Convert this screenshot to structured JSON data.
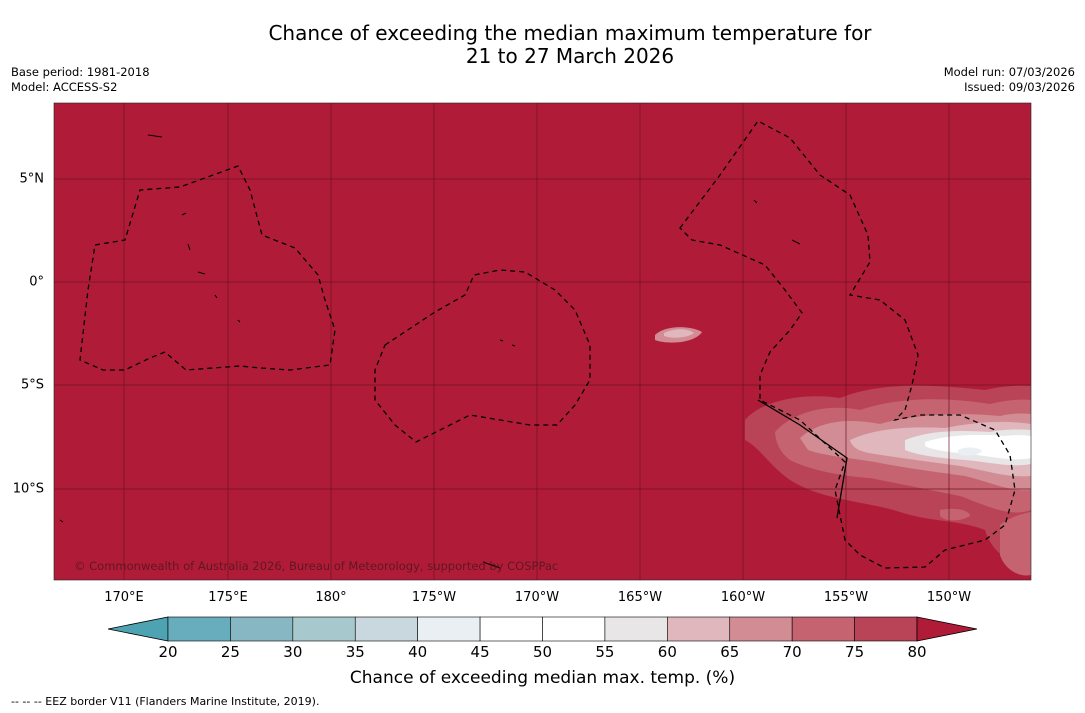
{
  "title": {
    "line1": "Chance of exceeding the median maximum temperature for",
    "line2": "21 to 27 March 2026"
  },
  "meta": {
    "base_period": "Base period: 1981-2018",
    "model": "Model: ACCESS-S2",
    "model_run": "Model run: 07/03/2026",
    "issued": "Issued: 09/03/2026"
  },
  "map": {
    "background_color": "#b01c37",
    "longitude_labels": [
      "170°E",
      "175°E",
      "180°",
      "175°W",
      "170°W",
      "165°W",
      "160°W",
      "155°W",
      "150°W"
    ],
    "latitude_labels": [
      "5°N",
      "0°",
      "5°S",
      "10°S"
    ],
    "copyright": "© Commonwealth of Australia 2026, Bureau of Meteorology, supported by COSPPac"
  },
  "colorbar": {
    "ticks": [
      "20",
      "25",
      "30",
      "35",
      "40",
      "45",
      "50",
      "55",
      "60",
      "65",
      "70",
      "75",
      "80"
    ],
    "colors": {
      "below_20": "#4ea3b3",
      "20_25": "#68adbd",
      "25_30": "#87b7c3",
      "30_35": "#a7c8cc",
      "35_40": "#c8d8de",
      "40_45": "#e9eff3",
      "45_50": "#ffffff",
      "50_55": "#ffffff",
      "55_60": "#e8e6e7",
      "60_65": "#dfb7bd",
      "65_70": "#d28c94",
      "70_75": "#c56470",
      "75_80": "#b94357",
      "above_80": "#b01c37"
    },
    "title": "Chance of exceeding median max. temp. (%)"
  },
  "footer": {
    "eez_note": "-- -- -- EEZ border V11 (Flanders Marine Institute, 2019)."
  }
}
